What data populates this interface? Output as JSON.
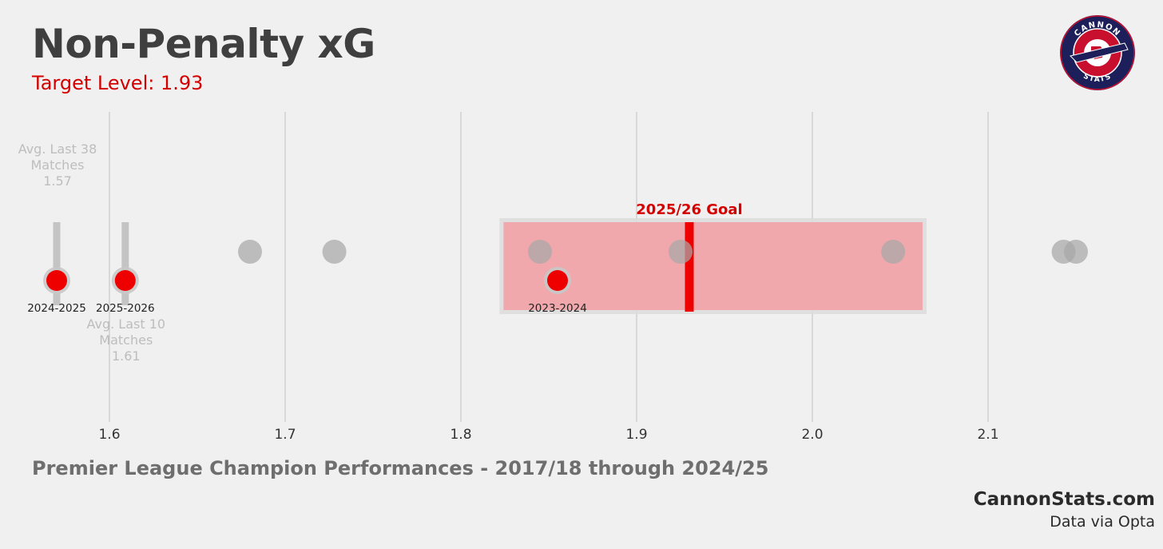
{
  "header": {
    "title": "Non-Penalty xG",
    "subtitle": "Target Level: 1.93"
  },
  "footer": {
    "description": "Premier League Champion Performances - 2017/18 through 2024/25",
    "brand": "CannonStats.com",
    "source": "Data via Opta"
  },
  "logo": {
    "top_text": "CANNON",
    "bottom_text": "STATS",
    "colors": {
      "ring": "#1c1f5a",
      "inner": "#c8102e",
      "accent": "#ffffff"
    }
  },
  "colors": {
    "accent": "#d40000",
    "marker_red": "#ee0000",
    "marker_grey": "#a8a8a8",
    "band_fill": "#f0a8ac",
    "background": "#f0f0f0"
  },
  "chart_data": {
    "type": "scatter",
    "title": "",
    "xlabel": "",
    "ylabel": "",
    "xlim": [
      1.545,
      2.19
    ],
    "xticks": [
      1.6,
      1.7,
      1.8,
      1.9,
      2.0,
      2.1
    ],
    "xtick_labels": [
      "1.6",
      "1.7",
      "1.8",
      "1.9",
      "2.0",
      "2.1"
    ],
    "grid": true,
    "goal": {
      "label": "2025/26 Goal",
      "value": 1.93,
      "band": [
        1.822,
        2.065
      ]
    },
    "champion_values": [
      1.68,
      1.728,
      1.845,
      1.925,
      2.046,
      2.143,
      2.15
    ],
    "arsenal_seasons": [
      {
        "season": "2024-2025",
        "value": 1.57
      },
      {
        "season": "2025-2026",
        "value": 1.609
      },
      {
        "season": "2023-2024",
        "value": 1.855
      }
    ],
    "averages": [
      {
        "label_line1": "Avg. Last 38",
        "label_line2": "Matches",
        "value_text": "1.57",
        "value": 1.57
      },
      {
        "label_line1": "Avg. Last 10",
        "label_line2": "Matches",
        "value_text": "1.61",
        "value": 1.609
      }
    ]
  }
}
